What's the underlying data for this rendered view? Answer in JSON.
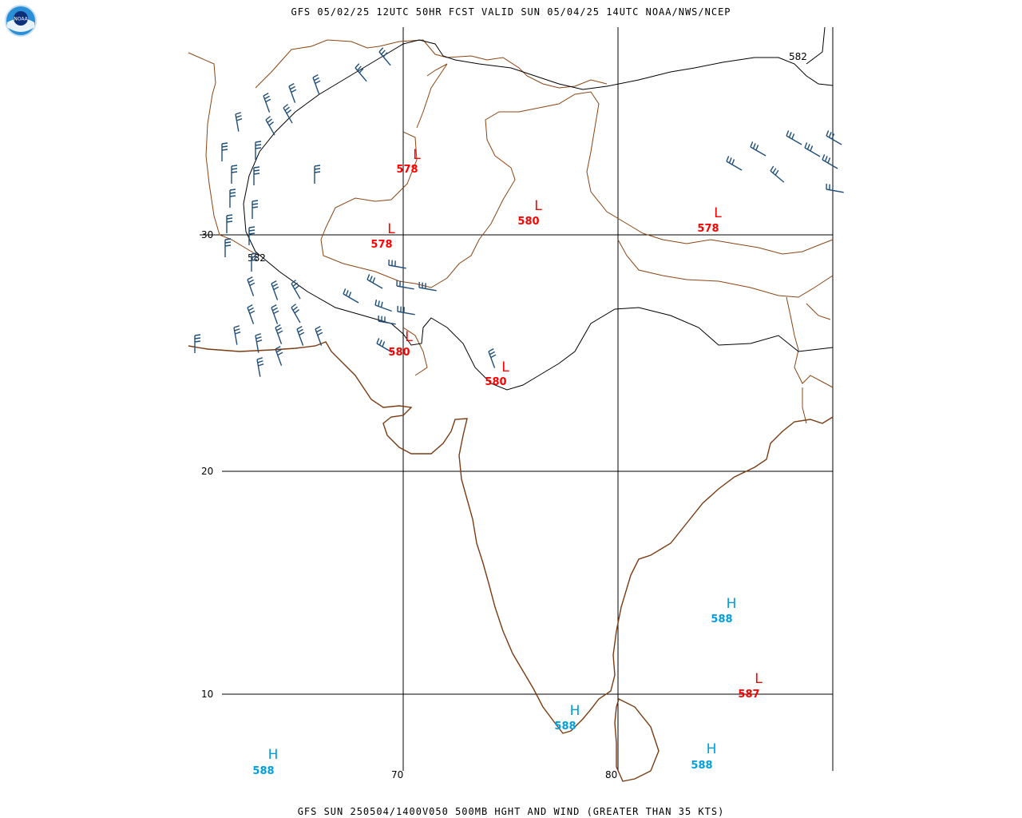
{
  "header": {
    "title": "GFS 05/02/25 12UTC 50HR FCST VALID SUN 05/04/25 14UTC NOAA/NWS/NCEP",
    "footer": "GFS SUN 250504/1400V050 500MB HGHT AND WIND (GREATER THAN 35 KTS)"
  },
  "logo": {
    "text": "NOAA",
    "icon": "noaa-logo-icon"
  },
  "colors": {
    "borders": "#8B4513",
    "coast": "#7A3B12",
    "grid": "#000000",
    "contour": "#000000",
    "low": "#FF0000",
    "high": "#00A0E0",
    "barbs": "#1F4E79"
  },
  "grid": {
    "lat_labels": [
      "30",
      "20",
      "10"
    ],
    "lon_labels": [
      "70",
      "80"
    ]
  },
  "contours": {
    "labels": [
      "582",
      "582"
    ]
  },
  "pressure_centers": [
    {
      "type": "L",
      "value": "578"
    },
    {
      "type": "L",
      "value": "578"
    },
    {
      "type": "L",
      "value": "580"
    },
    {
      "type": "L",
      "value": "578"
    },
    {
      "type": "L",
      "value": "580"
    },
    {
      "type": "L",
      "value": "580"
    },
    {
      "type": "H",
      "value": "588"
    },
    {
      "type": "L",
      "value": "587"
    },
    {
      "type": "H",
      "value": "588"
    },
    {
      "type": "H",
      "value": "588"
    },
    {
      "type": "H",
      "value": "588"
    }
  ]
}
